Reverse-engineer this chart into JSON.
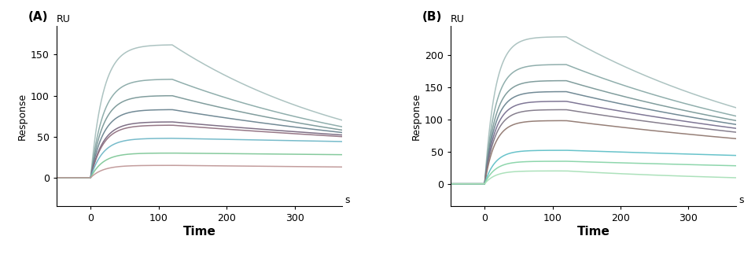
{
  "panel_A": {
    "label": "(A)",
    "ylabel": "Response",
    "xlabel": "Time",
    "xunit": "s",
    "yunit": "RU",
    "xlim": [
      -50,
      370
    ],
    "ylim": [
      -35,
      185
    ],
    "yticks": [
      0,
      50,
      100,
      150
    ],
    "xticks": [
      0,
      100,
      200,
      300
    ],
    "association_start": 0,
    "association_end": 120,
    "dissociation_end": 370,
    "curves": [
      {
        "peak": 162,
        "end_val": 70,
        "color": "#a8c0be",
        "ka_eff": 0.055
      },
      {
        "peak": 120,
        "end_val": 62,
        "color": "#8aaaa8",
        "ka_eff": 0.055
      },
      {
        "peak": 100,
        "end_val": 58,
        "color": "#7a9898",
        "ka_eff": 0.055
      },
      {
        "peak": 83,
        "end_val": 55,
        "color": "#6a8490",
        "ka_eff": 0.055
      },
      {
        "peak": 68,
        "end_val": 52,
        "color": "#786880",
        "ka_eff": 0.055
      },
      {
        "peak": 64,
        "end_val": 50,
        "color": "#907080",
        "ka_eff": 0.055
      },
      {
        "peak": 48,
        "end_val": 44,
        "color": "#70b8c8",
        "ka_eff": 0.055
      },
      {
        "peak": 30,
        "end_val": 28,
        "color": "#80c898",
        "ka_eff": 0.055
      },
      {
        "peak": 15,
        "end_val": 13,
        "color": "#c09898",
        "ka_eff": 0.055
      }
    ]
  },
  "panel_B": {
    "label": "(B)",
    "ylabel": "Response",
    "xlabel": "Time",
    "xunit": "s",
    "yunit": "RU",
    "xlim": [
      -50,
      370
    ],
    "ylim": [
      -35,
      245
    ],
    "yticks": [
      0,
      50,
      100,
      150,
      200
    ],
    "xticks": [
      0,
      100,
      200,
      300
    ],
    "association_start": 0,
    "association_end": 120,
    "dissociation_end": 370,
    "curves": [
      {
        "peak": 228,
        "end_val": 118,
        "color": "#a8c0be",
        "ka_eff": 0.065
      },
      {
        "peak": 185,
        "end_val": 105,
        "color": "#8aaaa8",
        "ka_eff": 0.065
      },
      {
        "peak": 160,
        "end_val": 98,
        "color": "#7a9898",
        "ka_eff": 0.065
      },
      {
        "peak": 143,
        "end_val": 92,
        "color": "#6a8490",
        "ka_eff": 0.065
      },
      {
        "peak": 128,
        "end_val": 86,
        "color": "#787090",
        "ka_eff": 0.065
      },
      {
        "peak": 115,
        "end_val": 80,
        "color": "#807888",
        "ka_eff": 0.065
      },
      {
        "peak": 98,
        "end_val": 70,
        "color": "#907870",
        "ka_eff": 0.065
      },
      {
        "peak": 52,
        "end_val": 44,
        "color": "#60c0c8",
        "ka_eff": 0.065
      },
      {
        "peak": 35,
        "end_val": 28,
        "color": "#88d4a8",
        "ka_eff": 0.065
      },
      {
        "peak": 20,
        "end_val": 20,
        "color": "#a8e0b8",
        "ka_eff": 0.065
      }
    ]
  },
  "background_color": "#ffffff",
  "font_size": 9,
  "label_fontsize": 11
}
